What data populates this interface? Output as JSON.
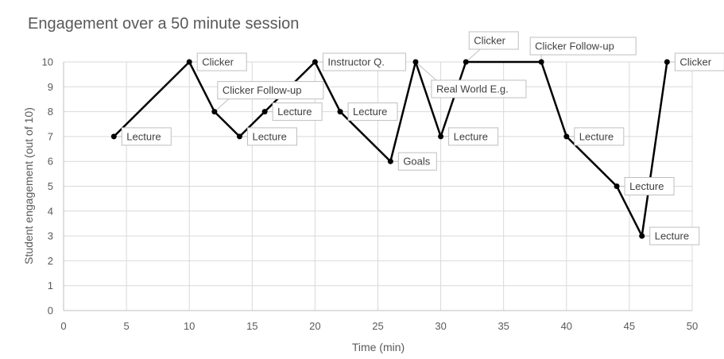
{
  "chart_data": {
    "type": "line",
    "title": "Engagement over a 50 minute session",
    "xlabel": "Time (min)",
    "ylabel": "Student engagement (out of 10)",
    "xlim": [
      0,
      50
    ],
    "ylim": [
      0,
      10
    ],
    "x_ticks": [
      0,
      5,
      10,
      15,
      20,
      25,
      30,
      35,
      40,
      45,
      50
    ],
    "y_ticks": [
      0,
      1,
      2,
      3,
      4,
      5,
      6,
      7,
      8,
      9,
      10
    ],
    "grid": true,
    "legend": "none",
    "series_color": "#000000",
    "points": [
      {
        "x": 4,
        "y": 7,
        "label": "Lecture",
        "label_pos": "right"
      },
      {
        "x": 10,
        "y": 10,
        "label": "Clicker",
        "label_pos": "right"
      },
      {
        "x": 12,
        "y": 8,
        "label": "Clicker Follow-up",
        "label_pos": "above-right"
      },
      {
        "x": 14,
        "y": 7,
        "label": "Lecture",
        "label_pos": "right"
      },
      {
        "x": 16,
        "y": 8,
        "label": "Lecture",
        "label_pos": "right"
      },
      {
        "x": 20,
        "y": 10,
        "label": "Instructor Q.",
        "label_pos": "right"
      },
      {
        "x": 22,
        "y": 8,
        "label": "Lecture",
        "label_pos": "right"
      },
      {
        "x": 26,
        "y": 6,
        "label": "Goals",
        "label_pos": "right"
      },
      {
        "x": 28,
        "y": 10,
        "label": "Real World E.g.",
        "label_pos": "below-right"
      },
      {
        "x": 30,
        "y": 7,
        "label": "Lecture",
        "label_pos": "right"
      },
      {
        "x": 32,
        "y": 10,
        "label": "Clicker",
        "label_pos": "above-right"
      },
      {
        "x": 38,
        "y": 10,
        "label": "Clicker Follow-up",
        "label_pos": "above"
      },
      {
        "x": 40,
        "y": 7,
        "label": "Lecture",
        "label_pos": "right"
      },
      {
        "x": 44,
        "y": 5,
        "label": "Lecture",
        "label_pos": "right"
      },
      {
        "x": 46,
        "y": 3,
        "label": "Lecture",
        "label_pos": "right"
      },
      {
        "x": 48,
        "y": 10,
        "label": "Clicker",
        "label_pos": "right"
      }
    ]
  }
}
